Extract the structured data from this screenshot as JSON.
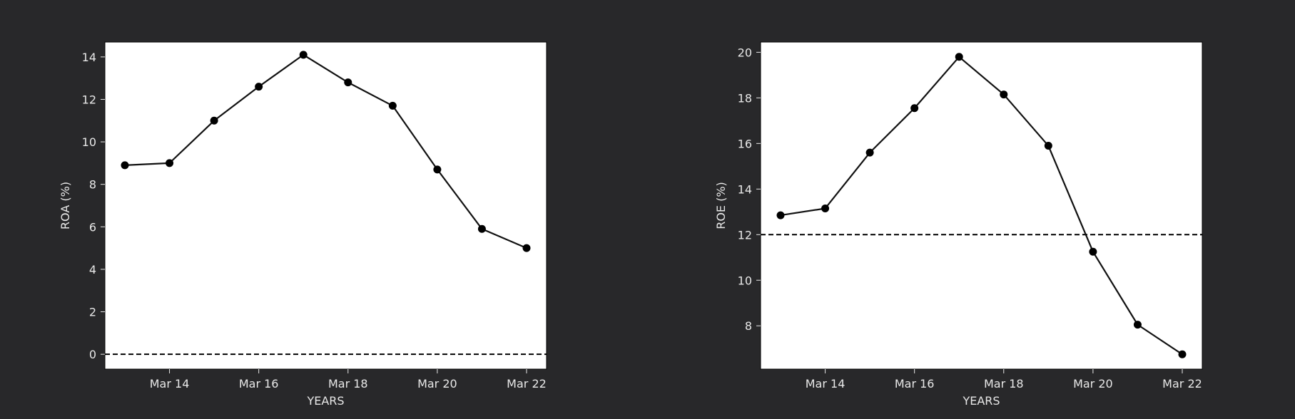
{
  "colors": {
    "background": "#28282a",
    "plot_background": "#ffffff",
    "line": "#111111",
    "text": "#e8e8e8"
  },
  "chart_data": [
    {
      "type": "line",
      "xlabel": "YEARS",
      "ylabel": "ROA (%)",
      "x": [
        "Mar 13",
        "Mar 14",
        "Mar 15",
        "Mar 16",
        "Mar 17",
        "Mar 18",
        "Mar 19",
        "Mar 20",
        "Mar 21",
        "Mar 22"
      ],
      "values": [
        8.9,
        9.0,
        11.0,
        12.6,
        14.1,
        12.8,
        11.7,
        8.7,
        5.9,
        5.0
      ],
      "xticks": [
        "Mar 14",
        "Mar 16",
        "Mar 18",
        "Mar 20",
        "Mar 22"
      ],
      "yticks": [
        0,
        2,
        4,
        6,
        8,
        10,
        12,
        14
      ],
      "ylim": [
        -0.7,
        14.7
      ],
      "reference_line": 0,
      "grid": false
    },
    {
      "type": "line",
      "xlabel": "YEARS",
      "ylabel": "ROE (%)",
      "x": [
        "Mar 13",
        "Mar 14",
        "Mar 15",
        "Mar 16",
        "Mar 17",
        "Mar 18",
        "Mar 19",
        "Mar 20",
        "Mar 21",
        "Mar 22"
      ],
      "values": [
        12.85,
        13.15,
        15.6,
        17.55,
        19.8,
        18.15,
        15.9,
        11.25,
        8.05,
        6.75
      ],
      "xticks": [
        "Mar 14",
        "Mar 16",
        "Mar 18",
        "Mar 20",
        "Mar 22"
      ],
      "yticks": [
        8,
        10,
        12,
        14,
        16,
        18,
        20
      ],
      "ylim": [
        6.1,
        20.45
      ],
      "reference_line": 12,
      "grid": false
    }
  ]
}
